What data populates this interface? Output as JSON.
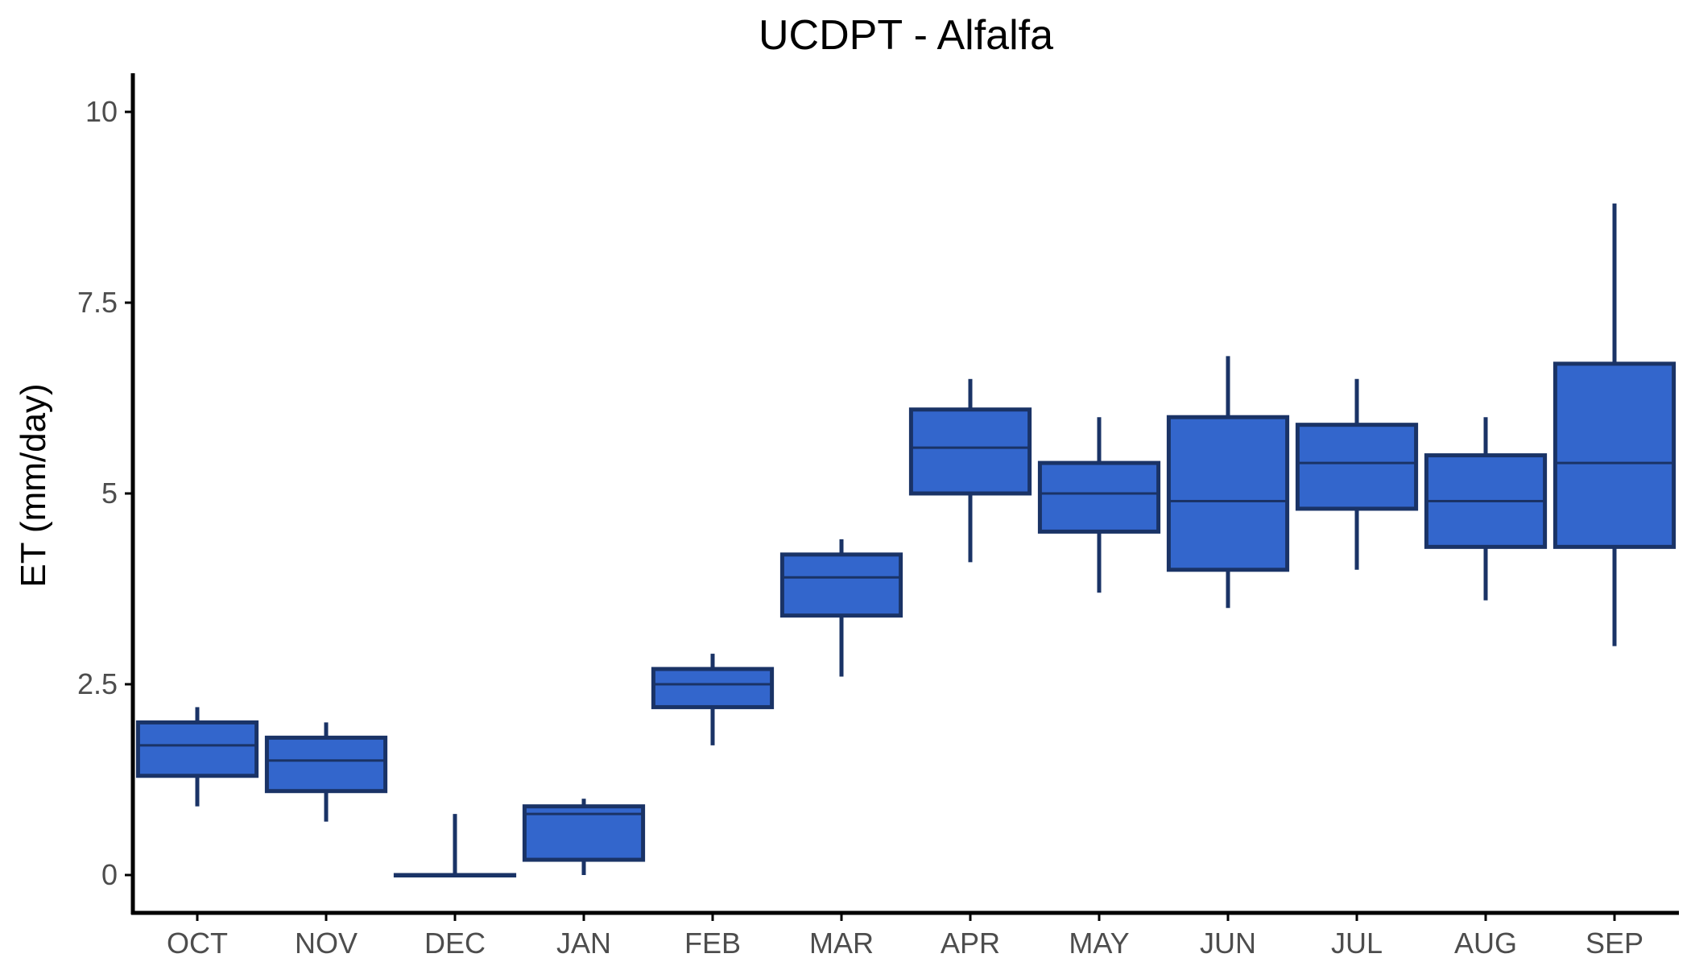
{
  "chart_data": {
    "type": "box",
    "title": "UCDPT - Alfalfa",
    "xlabel": "",
    "ylabel": "ET (mm/day)",
    "ylim": [
      -0.5,
      10.5
    ],
    "yticks": [
      0,
      2.5,
      5,
      7.5,
      10
    ],
    "ytick_labels": [
      "0",
      "2.5",
      "5",
      "7.5",
      "10"
    ],
    "grid": false,
    "legend": "none",
    "categories": [
      "OCT",
      "NOV",
      "DEC",
      "JAN",
      "FEB",
      "MAR",
      "APR",
      "MAY",
      "JUN",
      "JUL",
      "AUG",
      "SEP"
    ],
    "boxes": [
      {
        "category": "OCT",
        "min": 0.9,
        "q1": 1.3,
        "median": 1.7,
        "q3": 2.0,
        "max": 2.2
      },
      {
        "category": "NOV",
        "min": 0.7,
        "q1": 1.1,
        "median": 1.5,
        "q3": 1.8,
        "max": 2.0
      },
      {
        "category": "DEC",
        "min": 0.0,
        "q1": 0.0,
        "median": 0.0,
        "q3": 0.0,
        "max": 0.8
      },
      {
        "category": "JAN",
        "min": 0.0,
        "q1": 0.2,
        "median": 0.8,
        "q3": 0.9,
        "max": 1.0
      },
      {
        "category": "FEB",
        "min": 1.7,
        "q1": 2.2,
        "median": 2.5,
        "q3": 2.7,
        "max": 2.9
      },
      {
        "category": "MAR",
        "min": 2.6,
        "q1": 3.4,
        "median": 3.9,
        "q3": 4.2,
        "max": 4.4
      },
      {
        "category": "APR",
        "min": 4.1,
        "q1": 5.0,
        "median": 5.6,
        "q3": 6.1,
        "max": 6.5
      },
      {
        "category": "MAY",
        "min": 3.7,
        "q1": 4.5,
        "median": 5.0,
        "q3": 5.4,
        "max": 6.0
      },
      {
        "category": "JUN",
        "min": 3.5,
        "q1": 4.0,
        "median": 4.9,
        "q3": 6.0,
        "max": 6.8
      },
      {
        "category": "JUL",
        "min": 4.0,
        "q1": 4.8,
        "median": 5.4,
        "q3": 5.9,
        "max": 6.5
      },
      {
        "category": "AUG",
        "min": 3.6,
        "q1": 4.3,
        "median": 4.9,
        "q3": 5.5,
        "max": 6.0
      },
      {
        "category": "SEP",
        "min": 3.0,
        "q1": 4.3,
        "median": 5.4,
        "q3": 6.7,
        "max": 8.8
      }
    ],
    "colors": {
      "box_fill": "#3366cc",
      "box_outline": "#1a3366",
      "axis": "#000000",
      "tick_label": "#4d4d4d"
    }
  }
}
